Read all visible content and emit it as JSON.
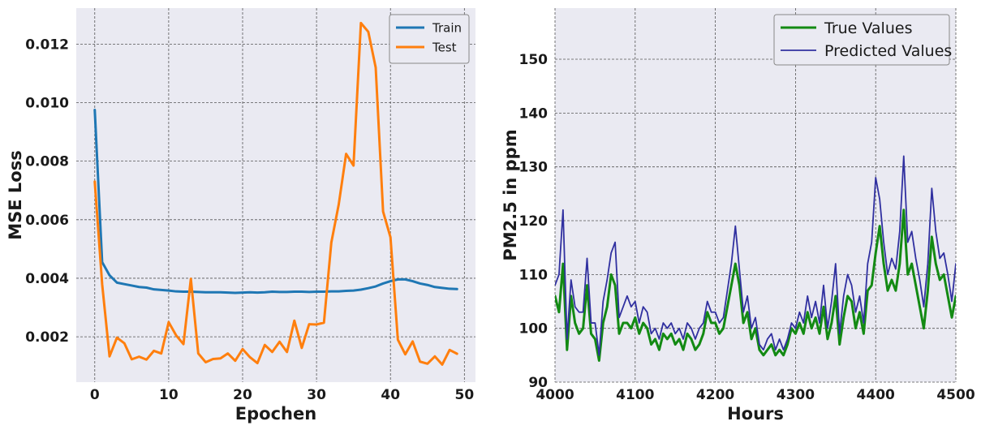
{
  "chart_data": [
    {
      "type": "line",
      "title": "",
      "xlabel": "Epochen",
      "ylabel": "MSE Loss",
      "xlim": [
        -2.5,
        51.5
      ],
      "ylim": [
        0.00045,
        0.01323
      ],
      "xticks": [
        0,
        10,
        20,
        30,
        40,
        50
      ],
      "yticks": [
        0.002,
        0.004,
        0.006,
        0.008,
        0.01,
        0.012
      ],
      "ytick_labels": [
        "0.002",
        "0.004",
        "0.006",
        "0.008",
        "0.010",
        "0.012"
      ],
      "grid": true,
      "legend_position": "top-right",
      "series": [
        {
          "name": "Train",
          "color": "#1f77b4",
          "x": [
            0,
            1,
            2,
            3,
            4,
            5,
            6,
            7,
            8,
            9,
            10,
            11,
            12,
            13,
            14,
            15,
            16,
            17,
            18,
            19,
            20,
            21,
            22,
            23,
            24,
            25,
            26,
            27,
            28,
            29,
            30,
            31,
            32,
            33,
            34,
            35,
            36,
            37,
            38,
            39,
            40,
            41,
            42,
            43,
            44,
            45,
            46,
            47,
            48,
            49
          ],
          "values": [
            0.00975,
            0.00455,
            0.0041,
            0.00385,
            0.0038,
            0.00375,
            0.0037,
            0.00368,
            0.00362,
            0.0036,
            0.00358,
            0.00355,
            0.00354,
            0.00354,
            0.00353,
            0.00352,
            0.00352,
            0.00352,
            0.00351,
            0.0035,
            0.00351,
            0.00352,
            0.00351,
            0.00352,
            0.00354,
            0.00353,
            0.00353,
            0.00354,
            0.00354,
            0.00353,
            0.00354,
            0.00354,
            0.00355,
            0.00355,
            0.00357,
            0.00358,
            0.00361,
            0.00366,
            0.00372,
            0.00382,
            0.0039,
            0.00396,
            0.00396,
            0.0039,
            0.00382,
            0.00377,
            0.0037,
            0.00367,
            0.00364,
            0.00363
          ]
        },
        {
          "name": "Test",
          "color": "#ff7f0e",
          "x": [
            0,
            1,
            2,
            3,
            4,
            5,
            6,
            7,
            8,
            9,
            10,
            11,
            12,
            13,
            14,
            15,
            16,
            17,
            18,
            19,
            20,
            21,
            22,
            23,
            24,
            25,
            26,
            27,
            28,
            29,
            30,
            31,
            32,
            33,
            34,
            35,
            36,
            37,
            38,
            39,
            40,
            41,
            42,
            43,
            44,
            45,
            46,
            47,
            48,
            49
          ],
          "values": [
            0.0073,
            0.0038,
            0.00133,
            0.00197,
            0.00178,
            0.00123,
            0.00132,
            0.00122,
            0.00152,
            0.00143,
            0.0025,
            0.00205,
            0.00175,
            0.00398,
            0.00143,
            0.00113,
            0.00124,
            0.00126,
            0.00143,
            0.00118,
            0.00158,
            0.0013,
            0.0011,
            0.00172,
            0.00148,
            0.00183,
            0.00148,
            0.00255,
            0.00162,
            0.00243,
            0.00242,
            0.00248,
            0.00522,
            0.00652,
            0.00825,
            0.00785,
            0.01272,
            0.01242,
            0.0112,
            0.00628,
            0.0054,
            0.0019,
            0.0014,
            0.00184,
            0.00115,
            0.00108,
            0.00133,
            0.00105,
            0.00155,
            0.00142
          ]
        }
      ]
    },
    {
      "type": "line",
      "title": "",
      "xlabel": "Hours",
      "ylabel": "PM2.5 in ppm",
      "xlim": [
        4000,
        4500
      ],
      "ylim": [
        90,
        159.5
      ],
      "xticks": [
        4000,
        4100,
        4200,
        4300,
        4400,
        4500
      ],
      "yticks": [
        90,
        100,
        110,
        120,
        130,
        140,
        150
      ],
      "grid": true,
      "legend_position": "top-right",
      "series": [
        {
          "name": "True Values",
          "color": "#138a13",
          "x": [
            4000,
            4005,
            4010,
            4015,
            4020,
            4025,
            4030,
            4035,
            4040,
            4045,
            4050,
            4055,
            4060,
            4065,
            4070,
            4075,
            4080,
            4085,
            4090,
            4095,
            4100,
            4105,
            4110,
            4115,
            4120,
            4125,
            4130,
            4135,
            4140,
            4145,
            4150,
            4155,
            4160,
            4165,
            4170,
            4175,
            4180,
            4185,
            4190,
            4195,
            4200,
            4205,
            4210,
            4215,
            4220,
            4225,
            4230,
            4235,
            4240,
            4245,
            4250,
            4255,
            4260,
            4265,
            4270,
            4275,
            4280,
            4285,
            4290,
            4295,
            4300,
            4305,
            4310,
            4315,
            4320,
            4325,
            4330,
            4335,
            4340,
            4345,
            4350,
            4355,
            4360,
            4365,
            4370,
            4375,
            4380,
            4385,
            4390,
            4395,
            4400,
            4405,
            4410,
            4415,
            4420,
            4425,
            4430,
            4435,
            4440,
            4445,
            4450,
            4455,
            4460,
            4465,
            4470,
            4475,
            4480,
            4485,
            4490,
            4495,
            4500
          ],
          "values": [
            106,
            103,
            112,
            96,
            106,
            101,
            99,
            100,
            108,
            99,
            98,
            94,
            101,
            104,
            110,
            108,
            99,
            101,
            101,
            100,
            102,
            99,
            101,
            100,
            97,
            98,
            96,
            99,
            98,
            99,
            97,
            98,
            96,
            99,
            98,
            96,
            97,
            99,
            103,
            101,
            101,
            99,
            100,
            104,
            108,
            112,
            108,
            101,
            103,
            98,
            100,
            96,
            95,
            96,
            97,
            95,
            96,
            95,
            97,
            100,
            99,
            101,
            99,
            103,
            100,
            102,
            99,
            104,
            98,
            101,
            106,
            97,
            102,
            106,
            105,
            100,
            103,
            99,
            107,
            108,
            114,
            119,
            112,
            107,
            109,
            107,
            112,
            122,
            110,
            112,
            108,
            104,
            100,
            107,
            117,
            112,
            109,
            110,
            106,
            102,
            106
          ]
        },
        {
          "name": "Predicted Values",
          "color": "#3030a0",
          "x": [
            4000,
            4005,
            4010,
            4015,
            4020,
            4025,
            4030,
            4035,
            4040,
            4045,
            4050,
            4055,
            4060,
            4065,
            4070,
            4075,
            4080,
            4085,
            4090,
            4095,
            4100,
            4105,
            4110,
            4115,
            4120,
            4125,
            4130,
            4135,
            4140,
            4145,
            4150,
            4155,
            4160,
            4165,
            4170,
            4175,
            4180,
            4185,
            4190,
            4195,
            4200,
            4205,
            4210,
            4215,
            4220,
            4225,
            4230,
            4235,
            4240,
            4245,
            4250,
            4255,
            4260,
            4265,
            4270,
            4275,
            4280,
            4285,
            4290,
            4295,
            4300,
            4305,
            4310,
            4315,
            4320,
            4325,
            4330,
            4335,
            4340,
            4345,
            4350,
            4355,
            4360,
            4365,
            4370,
            4375,
            4380,
            4385,
            4390,
            4395,
            4400,
            4405,
            4410,
            4415,
            4420,
            4425,
            4430,
            4435,
            4440,
            4445,
            4450,
            4455,
            4460,
            4465,
            4470,
            4475,
            4480,
            4485,
            4490,
            4495,
            4500
          ],
          "values": [
            108,
            110,
            122,
            98,
            109,
            104,
            103,
            103,
            113,
            101,
            101,
            95,
            105,
            109,
            114,
            116,
            102,
            104,
            106,
            104,
            105,
            101,
            104,
            103,
            99,
            100,
            98,
            101,
            100,
            101,
            99,
            100,
            98,
            101,
            100,
            98,
            100,
            101,
            105,
            103,
            103,
            101,
            102,
            107,
            112,
            119,
            111,
            103,
            106,
            100,
            102,
            97,
            96,
            98,
            99,
            96,
            98,
            96,
            98,
            101,
            100,
            103,
            101,
            106,
            102,
            105,
            101,
            108,
            100,
            105,
            112,
            99,
            106,
            110,
            108,
            103,
            106,
            101,
            112,
            116,
            128,
            124,
            116,
            110,
            113,
            111,
            118,
            132,
            116,
            118,
            113,
            109,
            104,
            112,
            126,
            118,
            113,
            114,
            110,
            105,
            112
          ]
        }
      ]
    }
  ]
}
